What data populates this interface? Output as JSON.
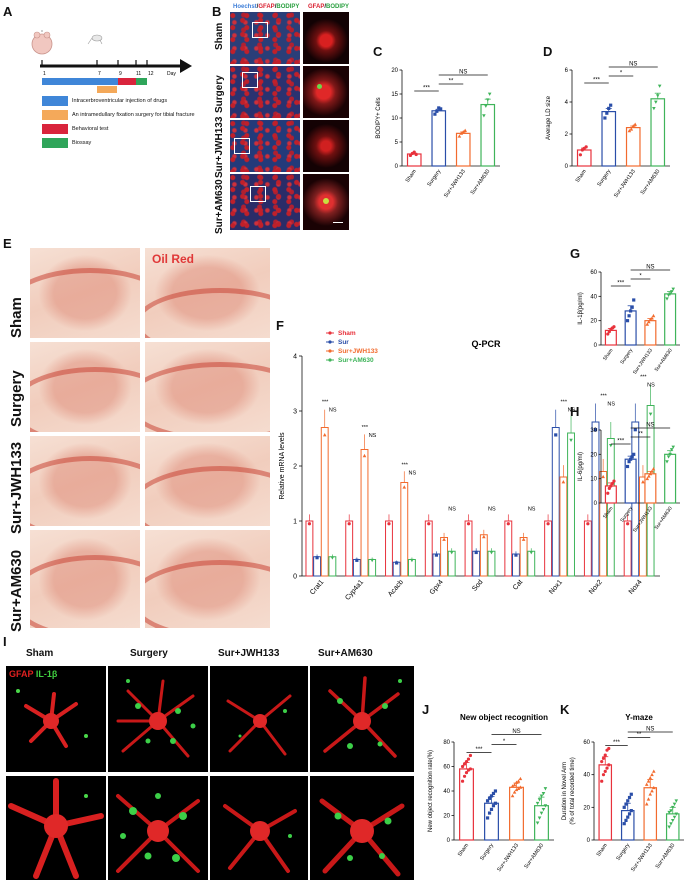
{
  "panels": {
    "A": "A",
    "B": "B",
    "C": "C",
    "D": "D",
    "E": "E",
    "F": "F",
    "G": "G",
    "H": "H",
    "I": "I",
    "J": "J",
    "K": "K"
  },
  "timeline": {
    "days": [
      "1",
      "7",
      "9",
      "11",
      "12",
      "Day"
    ],
    "legend": [
      {
        "label": "Intracerbroventricular injection of drugs",
        "color": "#3f86d8"
      },
      {
        "label": "An intramedullary fixation surgery for tibial fracture",
        "color": "#f4a95a"
      },
      {
        "label": "Behavioral test",
        "color": "#d9243c"
      },
      {
        "label": "Biossay",
        "color": "#2fa55a"
      }
    ]
  },
  "panelB": {
    "header_left": {
      "hoechst": "Hoechst",
      "sep1": "/",
      "gfap": "GFAP",
      "sep2": "/",
      "bodipy": "BODIPY"
    },
    "header_right": {
      "gfap": "GFAP",
      "sep": "/",
      "bodipy": "BODIPY"
    },
    "rows": [
      "Sham",
      "Surgery",
      "Sur+JWH133",
      "Sur+AM630"
    ]
  },
  "groups": [
    "Sham",
    "Surgery",
    "Sur+JWH133",
    "Sur+AM630"
  ],
  "group_colors": [
    "#e8323c",
    "#2a4ea8",
    "#f26b2e",
    "#3fb45a"
  ],
  "chart_data": [
    {
      "id": "C",
      "type": "bar",
      "categories": [
        "Sham",
        "Surgery",
        "Sur+JWH133",
        "Sur+AM630"
      ],
      "values": [
        2.5,
        11.5,
        6.8,
        12.8
      ],
      "ylabel": "BODIPY+ Cells",
      "ylim": [
        0,
        20
      ],
      "yticks": [
        0,
        5,
        10,
        15,
        20
      ],
      "points": [
        [
          2.2,
          2.6,
          2.9,
          2.4
        ],
        [
          10.8,
          11.4,
          12.1,
          11.9
        ],
        [
          6.2,
          6.8,
          7.1,
          7.4
        ],
        [
          10.5,
          12.5,
          13.8,
          15.0
        ]
      ],
      "sig": [
        {
          "from": 0,
          "to": 1,
          "text": "***"
        },
        {
          "from": 1,
          "to": 2,
          "text": "**"
        },
        {
          "from": 1,
          "to": 3,
          "text": "NS"
        }
      ]
    },
    {
      "id": "D",
      "type": "bar",
      "categories": [
        "Sham",
        "Surgery",
        "Sur+JWH133",
        "Sur+AM630"
      ],
      "values": [
        1.0,
        3.4,
        2.4,
        4.2
      ],
      "ylabel": "Average LD size",
      "ylim": [
        0,
        6
      ],
      "yticks": [
        0,
        2,
        4,
        6
      ],
      "points": [
        [
          0.7,
          1.0,
          1.1,
          1.2
        ],
        [
          3.0,
          3.3,
          3.6,
          3.8
        ],
        [
          2.2,
          2.3,
          2.5,
          2.6
        ],
        [
          3.6,
          4.0,
          4.4,
          5.0
        ]
      ],
      "sig": [
        {
          "from": 0,
          "to": 1,
          "text": "***"
        },
        {
          "from": 1,
          "to": 2,
          "text": "*"
        },
        {
          "from": 1,
          "to": 3,
          "text": "NS"
        }
      ]
    },
    {
      "id": "F",
      "type": "bar",
      "title": "Q-PCR",
      "ylabel": "Relative mRNA levels",
      "ylim": [
        0,
        4
      ],
      "yticks": [
        0,
        1,
        2,
        3,
        4
      ],
      "categories": [
        "Crat1",
        "Cyp4a1",
        "Acacb",
        "Gpx4",
        "Sod",
        "Cat",
        "Nox1",
        "Nox2",
        "Nox4"
      ],
      "series": [
        {
          "name": "Sham",
          "values": [
            1.0,
            1.0,
            1.0,
            1.0,
            1.0,
            1.0,
            1.0,
            1.0,
            1.0
          ]
        },
        {
          "name": "Sur",
          "values": [
            0.35,
            0.3,
            0.25,
            0.4,
            0.45,
            0.4,
            2.7,
            2.8,
            2.8
          ]
        },
        {
          "name": "Sur+JWH133",
          "values": [
            2.7,
            2.3,
            1.7,
            0.7,
            0.75,
            0.7,
            1.8,
            1.9,
            1.8
          ]
        },
        {
          "name": "Sur+AM630",
          "values": [
            0.35,
            0.3,
            0.3,
            0.45,
            0.45,
            0.45,
            2.6,
            2.5,
            3.1
          ]
        }
      ],
      "sig": [
        "***",
        "NS",
        "***",
        "NS",
        "***",
        "NS",
        "",
        "NS",
        "",
        "NS",
        "",
        "NS",
        "***",
        "NS",
        "***",
        "NS",
        "***",
        "NS"
      ]
    },
    {
      "id": "G",
      "type": "bar",
      "categories": [
        "Sham",
        "Surgery",
        "Sur+JWH133",
        "Sur+AM630"
      ],
      "values": [
        12,
        28,
        20,
        42
      ],
      "ylabel": "IL-1β(pg/ml)",
      "ylim": [
        0,
        60
      ],
      "yticks": [
        0,
        20,
        40,
        60
      ],
      "points": [
        [
          9,
          11,
          13,
          14,
          15
        ],
        [
          20,
          24,
          28,
          31,
          37
        ],
        [
          17,
          19,
          21,
          22,
          24
        ],
        [
          38,
          41,
          42,
          44,
          46
        ]
      ],
      "sig": [
        {
          "from": 0,
          "to": 1,
          "text": "***"
        },
        {
          "from": 1,
          "to": 2,
          "text": "*"
        },
        {
          "from": 1,
          "to": 3,
          "text": "NS"
        }
      ]
    },
    {
      "id": "H",
      "type": "bar",
      "categories": [
        "Sham",
        "Surgery",
        "Sur+JWH133",
        "Sur+AM630"
      ],
      "values": [
        7,
        18,
        12,
        20
      ],
      "ylabel": "IL-6(pg/ml)",
      "ylim": [
        0,
        30
      ],
      "yticks": [
        0,
        10,
        20,
        30
      ],
      "points": [
        [
          4,
          6,
          7,
          8,
          9
        ],
        [
          15,
          17,
          18,
          19,
          20
        ],
        [
          10,
          11,
          12,
          13,
          14
        ],
        [
          17,
          19,
          20,
          22,
          23
        ]
      ],
      "sig": [
        {
          "from": 0,
          "to": 1,
          "text": "***"
        },
        {
          "from": 1,
          "to": 2,
          "text": "**"
        },
        {
          "from": 1,
          "to": 3,
          "text": "NS"
        }
      ]
    },
    {
      "id": "J",
      "type": "bar",
      "title": "New object recognition",
      "categories": [
        "Sham",
        "Surgery",
        "Sur+JWH133",
        "Sur+AM630"
      ],
      "values": [
        58,
        30,
        43,
        28
      ],
      "ylabel": "New object recognition rate(%)",
      "ylim": [
        0,
        80
      ],
      "yticks": [
        0,
        20,
        40,
        60,
        80
      ],
      "points": [
        [
          48,
          52,
          55,
          57,
          58,
          60,
          62,
          64,
          66,
          69
        ],
        [
          18,
          22,
          25,
          28,
          30,
          32,
          34,
          36,
          38,
          40
        ],
        [
          36,
          39,
          41,
          42,
          43,
          44,
          45,
          47,
          48,
          50
        ],
        [
          14,
          18,
          22,
          25,
          28,
          30,
          33,
          36,
          38,
          42
        ]
      ],
      "sig": [
        {
          "from": 0,
          "to": 1,
          "text": "***"
        },
        {
          "from": 1,
          "to": 2,
          "text": "*"
        },
        {
          "from": 1,
          "to": 3,
          "text": "NS"
        }
      ]
    },
    {
      "id": "K",
      "type": "bar",
      "title": "Y-maze",
      "categories": [
        "Sham",
        "Surgery",
        "Sur+JWH133",
        "Sur+AM630"
      ],
      "values": [
        46,
        18,
        32,
        16
      ],
      "ylabel": "Duration in Novel Arm",
      "ylabel2": "(% of total recorded time)",
      "ylim": [
        0,
        60
      ],
      "yticks": [
        0,
        20,
        40,
        60
      ],
      "points": [
        [
          36,
          40,
          42,
          44,
          46,
          48,
          50,
          52,
          55,
          56
        ],
        [
          10,
          12,
          14,
          16,
          18,
          20,
          22,
          24,
          26,
          28
        ],
        [
          22,
          25,
          28,
          30,
          32,
          34,
          36,
          38,
          40,
          42
        ],
        [
          8,
          10,
          12,
          14,
          16,
          17,
          18,
          20,
          22,
          24
        ]
      ],
      "sig": [
        {
          "from": 0,
          "to": 1,
          "text": "***"
        },
        {
          "from": 1,
          "to": 2,
          "text": "**"
        },
        {
          "from": 1,
          "to": 3,
          "text": "NS"
        }
      ]
    }
  ],
  "panelE": {
    "stain": "Oil Red",
    "rows": [
      "Sham",
      "Surgery",
      "Sur+JWH133",
      "Sur+AM630"
    ]
  },
  "panelI": {
    "cols": [
      "Sham",
      "Surgery",
      "Sur+JWH133",
      "Sur+AM630"
    ],
    "legend_gfap": "GFAP",
    "legend_il": "IL-1β"
  }
}
